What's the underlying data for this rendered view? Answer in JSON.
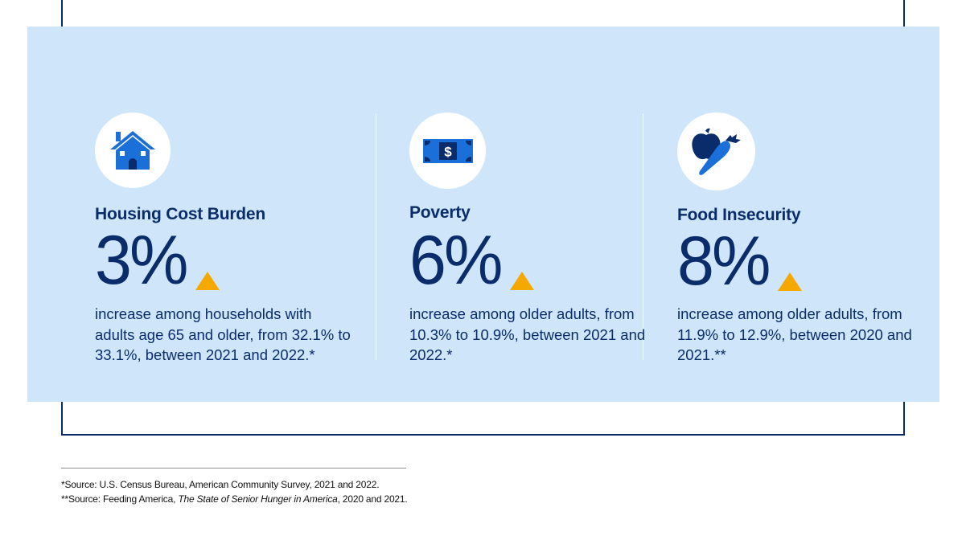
{
  "accent_colors": {
    "navy": "#0a2c6b",
    "blue": "#1a6fd8",
    "panel": "#cfe6fa",
    "trend": "#f5a800"
  },
  "stats": [
    {
      "title": "Housing Cost Burden",
      "value": "3%",
      "icon": "house-icon",
      "trend": "up",
      "description": "increase among households with adults age 65 and older, from 32.1% to 33.1%, between 2021 and 2022.*"
    },
    {
      "title": "Poverty",
      "value": "6%",
      "icon": "dollar-bill-icon",
      "trend": "up",
      "description": "increase among older adults, from 10.3% to 10.9%, between 2021 and 2022.*"
    },
    {
      "title": "Food Insecurity",
      "value": "8%",
      "icon": "apple-carrot-icon",
      "trend": "up",
      "description": "increase among older adults, from 11.9% to 12.9%, between 2020 and 2021.**"
    }
  ],
  "sources": {
    "line1": "*Source: U.S. Census Bureau, American Community Survey, 2021 and 2022.",
    "line2_prefix": "**Source: Feeding America, ",
    "line2_title": "The State of Senior Hunger in America",
    "line2_suffix": ", 2020 and 2021."
  }
}
